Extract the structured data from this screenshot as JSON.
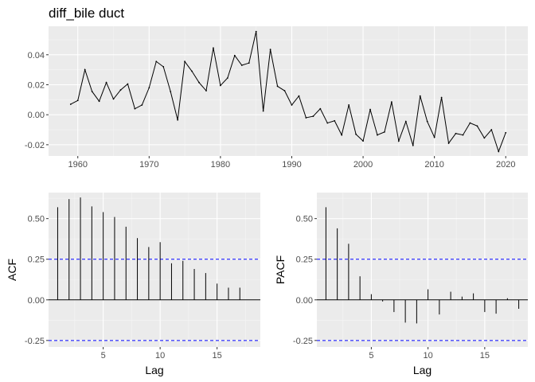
{
  "colors": {
    "panel_bg": "#ebebeb",
    "grid_major": "#ffffff",
    "grid_minor": "#f5f5f5",
    "series": "#000000",
    "ci": "#0000ff",
    "tick_text": "#4d4d4d"
  },
  "chart_data": [
    {
      "type": "line",
      "title": "diff_bile duct",
      "xlabel": "",
      "ylabel": "",
      "xlim": [
        1955.9,
        2023.1
      ],
      "ylim": [
        -0.0275,
        0.059
      ],
      "xticks": [
        1960,
        1970,
        1980,
        1990,
        2000,
        2010,
        2020
      ],
      "yticks": [
        -0.02,
        0.0,
        0.02,
        0.04
      ],
      "ytick_labels": [
        "-0.02",
        "0.00",
        "0.02",
        "0.04"
      ],
      "grid": true,
      "x": [
        1959,
        1960,
        1961,
        1962,
        1963,
        1964,
        1965,
        1966,
        1967,
        1968,
        1969,
        1970,
        1971,
        1972,
        1973,
        1974,
        1975,
        1976,
        1977,
        1978,
        1979,
        1980,
        1981,
        1982,
        1983,
        1984,
        1985,
        1986,
        1987,
        1988,
        1989,
        1990,
        1991,
        1992,
        1993,
        1994,
        1995,
        1996,
        1997,
        1998,
        1999,
        2000,
        2001,
        2002,
        2003,
        2004,
        2005,
        2006,
        2007,
        2008,
        2009,
        2010,
        2011,
        2012,
        2013,
        2014,
        2015,
        2016,
        2017,
        2018,
        2019,
        2020
      ],
      "y": [
        0.007,
        0.0095,
        0.03,
        0.0155,
        0.009,
        0.0215,
        0.0105,
        0.0165,
        0.0205,
        0.004,
        0.0065,
        0.018,
        0.0355,
        0.032,
        0.0155,
        -0.0035,
        0.0355,
        0.029,
        0.0215,
        0.016,
        0.0445,
        0.0195,
        0.0245,
        0.0395,
        0.033,
        0.0345,
        0.0555,
        0.0025,
        0.0435,
        0.019,
        0.016,
        0.0065,
        0.0125,
        -0.002,
        -0.001,
        0.004,
        -0.0055,
        -0.004,
        -0.0135,
        0.0065,
        -0.013,
        -0.0175,
        0.0035,
        -0.0135,
        -0.0115,
        0.0085,
        -0.0175,
        -0.0045,
        -0.0205,
        0.0125,
        -0.0045,
        -0.015,
        0.0115,
        -0.019,
        -0.0125,
        -0.0135,
        -0.0055,
        -0.0075,
        -0.0155,
        -0.01,
        -0.0245,
        -0.012
      ]
    },
    {
      "type": "bar",
      "title": "",
      "xlabel": "Lag",
      "ylabel": "ACF",
      "xlim": [
        0.2,
        18.8
      ],
      "ylim": [
        -0.29,
        0.66
      ],
      "xticks": [
        5,
        10,
        15
      ],
      "yticks": [
        -0.25,
        0.0,
        0.25,
        0.5
      ],
      "ytick_labels": [
        "-0.25",
        "0.00",
        "0.25",
        "0.50"
      ],
      "grid": true,
      "ci": 0.25,
      "lags": [
        1,
        2,
        3,
        4,
        5,
        6,
        7,
        8,
        9,
        10,
        11,
        12,
        13,
        14,
        15,
        16,
        17
      ],
      "values": [
        0.57,
        0.62,
        0.63,
        0.575,
        0.54,
        0.51,
        0.45,
        0.38,
        0.325,
        0.355,
        0.225,
        0.24,
        0.19,
        0.165,
        0.1,
        0.075,
        0.075
      ]
    },
    {
      "type": "bar",
      "title": "",
      "xlabel": "Lag",
      "ylabel": "PACF",
      "xlim": [
        0.2,
        18.8
      ],
      "ylim": [
        -0.29,
        0.66
      ],
      "xticks": [
        5,
        10,
        15
      ],
      "yticks": [
        -0.25,
        0.0,
        0.25,
        0.5
      ],
      "ytick_labels": [
        "-0.25",
        "0.00",
        "0.25",
        "0.50"
      ],
      "grid": true,
      "ci": 0.25,
      "lags": [
        1,
        2,
        3,
        4,
        5,
        6,
        7,
        8,
        9,
        10,
        11,
        12,
        13,
        14,
        15,
        16,
        17,
        18
      ],
      "values": [
        0.57,
        0.44,
        0.345,
        0.145,
        0.035,
        -0.01,
        -0.075,
        -0.14,
        -0.145,
        0.065,
        -0.09,
        0.05,
        0.02,
        0.04,
        -0.075,
        -0.085,
        0.01,
        -0.055
      ]
    }
  ]
}
